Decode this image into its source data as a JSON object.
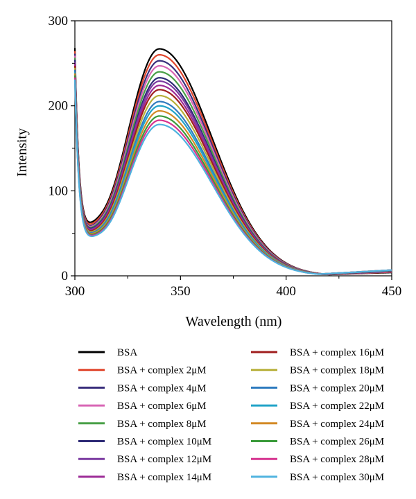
{
  "chart_data": {
    "type": "line",
    "title": "",
    "xlabel": "Wavelength (nm)",
    "ylabel": "Intensity",
    "xlim": [
      300,
      450
    ],
    "ylim": [
      0,
      300
    ],
    "xticks": [
      "300",
      "350",
      "400",
      "450"
    ],
    "yticks": [
      "0",
      "100",
      "200",
      "300"
    ],
    "grid": false,
    "legend_position": "bottom",
    "peak_wavelength": 340,
    "series": [
      {
        "name": "BSA",
        "color": "#000000",
        "start": 245,
        "valley": 63,
        "peak": 267,
        "end": 4
      },
      {
        "name": "BSA + complex 2μM",
        "color": "#e0452b",
        "start": 242,
        "valley": 61,
        "peak": 260,
        "end": 4.5
      },
      {
        "name": "BSA + complex 4μM",
        "color": "#3a2f7c",
        "start": 240,
        "valley": 59,
        "peak": 253,
        "end": 5
      },
      {
        "name": "BSA + complex 6μM",
        "color": "#d866b5",
        "start": 238,
        "valley": 58,
        "peak": 247,
        "end": 5
      },
      {
        "name": "BSA + complex 8μM",
        "color": "#4aa048",
        "start": 236,
        "valley": 57,
        "peak": 240,
        "end": 5.5
      },
      {
        "name": "BSA + complex 10μM",
        "color": "#2d2a75",
        "start": 234,
        "valley": 56,
        "peak": 233,
        "end": 5.5
      },
      {
        "name": "BSA + complex 12μM",
        "color": "#7b3aa0",
        "start": 232,
        "valley": 55,
        "peak": 229,
        "end": 6
      },
      {
        "name": "BSA + complex 14μM",
        "color": "#9c2a96",
        "start": 230,
        "valley": 54,
        "peak": 224,
        "end": 6
      },
      {
        "name": "BSA + complex 16μM",
        "color": "#a01e1e",
        "start": 228,
        "valley": 53,
        "peak": 219,
        "end": 6
      },
      {
        "name": "BSA + complex 18μM",
        "color": "#b7b03a",
        "start": 226,
        "valley": 52,
        "peak": 212,
        "end": 6.5
      },
      {
        "name": "BSA + complex 20μM",
        "color": "#2f7bbf",
        "start": 224,
        "valley": 51,
        "peak": 205,
        "end": 6.5
      },
      {
        "name": "BSA + complex 22μM",
        "color": "#22a3c8",
        "start": 222,
        "valley": 50,
        "peak": 200,
        "end": 6.5
      },
      {
        "name": "BSA + complex 24μM",
        "color": "#d38a26",
        "start": 220,
        "valley": 50,
        "peak": 194,
        "end": 7
      },
      {
        "name": "BSA + complex 26μM",
        "color": "#3a9b3a",
        "start": 218,
        "valley": 49,
        "peak": 188,
        "end": 7
      },
      {
        "name": "BSA + complex 28μM",
        "color": "#d6338f",
        "start": 216,
        "valley": 48,
        "peak": 183,
        "end": 7
      },
      {
        "name": "BSA + complex 30μM",
        "color": "#4fb3df",
        "start": 214,
        "valley": 47,
        "peak": 178,
        "end": 7
      }
    ]
  }
}
